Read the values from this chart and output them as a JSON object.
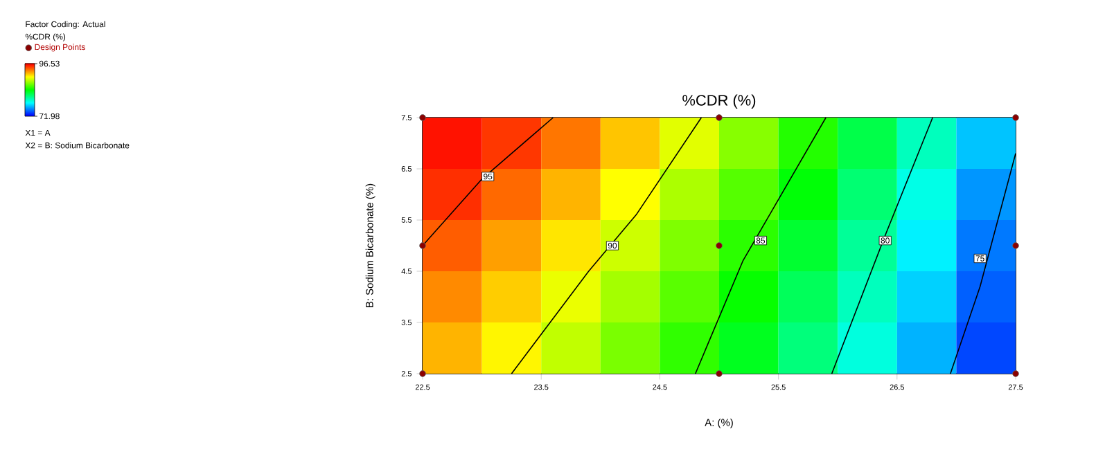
{
  "chart_data": {
    "type": "heatmap",
    "title": "%CDR (%)",
    "xlabel": "A: (%)",
    "ylabel": "B: Sodium Bicarbonate (%)",
    "clabel": "%CDR (%)",
    "xlim": [
      22.5,
      27.5
    ],
    "ylim": [
      2.5,
      7.5
    ],
    "xticks": [
      22.5,
      23.5,
      24.5,
      25.5,
      26.5,
      27.5
    ],
    "yticks": [
      2.5,
      3.5,
      4.5,
      5.5,
      6.5,
      7.5
    ],
    "clim": [
      71.98,
      96.53
    ],
    "cticks": [
      71.98,
      96.53
    ],
    "cells": [
      [
        96.1,
        95.2,
        93.7,
        91.8,
        89.7,
        87.5,
        85.1,
        82.5,
        79.7,
        76.7
      ],
      [
        95.4,
        94.0,
        92.2,
        90.4,
        88.4,
        86.3,
        84.1,
        81.5,
        78.7,
        75.6
      ],
      [
        94.3,
        92.7,
        91.0,
        89.2,
        87.3,
        85.3,
        83.1,
        80.6,
        77.8,
        74.9
      ],
      [
        93.2,
        91.6,
        89.9,
        88.2,
        86.4,
        84.4,
        82.1,
        79.7,
        77.0,
        74.3
      ],
      [
        92.2,
        90.6,
        88.9,
        87.2,
        85.4,
        83.5,
        81.3,
        78.9,
        76.3,
        73.7
      ]
    ],
    "series": [
      {
        "type": "scatter",
        "name": "Design Points",
        "color": "#8b0000",
        "marker": "circle",
        "x": [
          22.5,
          22.5,
          22.5,
          25.0,
          25.0,
          25.0,
          27.5,
          27.5,
          27.5
        ],
        "values": [
          2.5,
          5.0,
          7.5,
          2.5,
          5.0,
          7.5,
          2.5,
          5.0,
          7.5
        ]
      },
      {
        "type": "line",
        "color": "#000000",
        "x": [
          22.5,
          23.0,
          23.6
        ],
        "values": [
          5.0,
          6.3,
          7.5
        ]
      },
      {
        "type": "line",
        "color": "#000000",
        "x": [
          23.25,
          23.9,
          24.3,
          24.85
        ],
        "values": [
          2.5,
          4.5,
          5.6,
          7.5
        ]
      },
      {
        "type": "line",
        "color": "#000000",
        "x": [
          24.8,
          25.2,
          25.9
        ],
        "values": [
          2.5,
          4.7,
          7.5
        ]
      },
      {
        "type": "line",
        "color": "#000000",
        "x": [
          25.95,
          26.4,
          26.8
        ],
        "values": [
          2.5,
          5.2,
          7.5
        ]
      },
      {
        "type": "line",
        "color": "#000000",
        "x": [
          26.95,
          27.2,
          27.5
        ],
        "values": [
          2.5,
          4.2,
          6.8
        ]
      }
    ],
    "legend": "left",
    "annotations": [
      "Factor Coding: Actual",
      "X1 = A",
      "X2 = B: Sodium Bicarbonate",
      {
        "text": "95",
        "x": 23.05,
        "y": 6.35
      },
      {
        "text": "90",
        "x": 24.1,
        "y": 5.0
      },
      {
        "text": "85",
        "x": 25.35,
        "y": 5.1
      },
      {
        "text": "80",
        "x": 26.4,
        "y": 5.1
      },
      {
        "text": "75",
        "x": 27.2,
        "y": 4.75
      }
    ]
  }
}
